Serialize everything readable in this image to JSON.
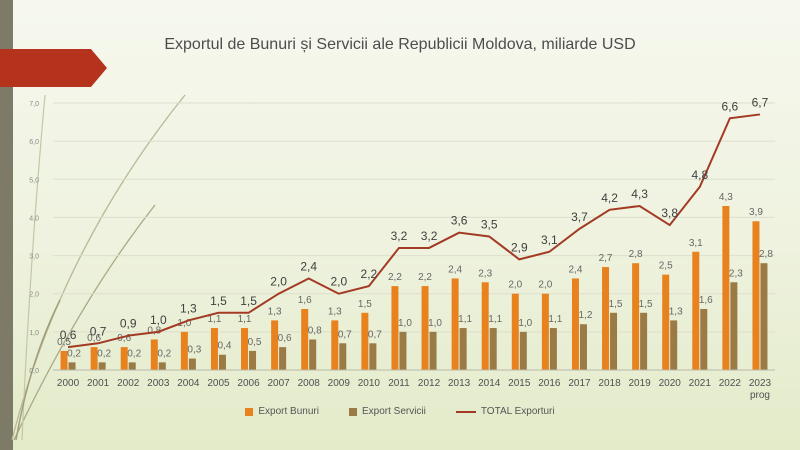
{
  "chart_data": {
    "type": "bar",
    "title": "Exportul de Bunuri și Servicii ale Republicii Moldova, miliarde USD",
    "categories": [
      "2000",
      "2001",
      "2002",
      "2003",
      "2004",
      "2005",
      "2006",
      "2007",
      "2008",
      "2009",
      "2010",
      "2011",
      "2012",
      "2013",
      "2014",
      "2015",
      "2016",
      "2017",
      "2018",
      "2019",
      "2020",
      "2021",
      "2022",
      "2023 prog"
    ],
    "yticks": [
      "0,0",
      "1,0",
      "2,0",
      "3,0",
      "4,0",
      "5,0",
      "6,0",
      "7,0"
    ],
    "ylim": [
      0,
      7
    ],
    "series": [
      {
        "name": "Export Bunuri",
        "type": "bar",
        "color": "#e8821e",
        "values": [
          0.5,
          0.6,
          0.6,
          0.8,
          1.0,
          1.1,
          1.1,
          1.3,
          1.6,
          1.3,
          1.5,
          2.2,
          2.2,
          2.4,
          2.3,
          2.0,
          2.0,
          2.4,
          2.7,
          2.8,
          2.5,
          3.1,
          4.3,
          3.9
        ],
        "labels": [
          "0,5",
          "0,6",
          "0,6",
          "0,8",
          "1,0",
          "1,1",
          "1,1",
          "1,3",
          "1,6",
          "1,3",
          "1,5",
          "2,2",
          "2,2",
          "2,4",
          "2,3",
          "2,0",
          "2,0",
          "2,4",
          "2,7",
          "2,8",
          "2,5",
          "3,1",
          "4,3",
          "3,9"
        ]
      },
      {
        "name": "Export Servicii",
        "type": "bar",
        "color": "#9a7b45",
        "values": [
          0.2,
          0.2,
          0.2,
          0.2,
          0.3,
          0.4,
          0.5,
          0.6,
          0.8,
          0.7,
          0.7,
          1.0,
          1.0,
          1.1,
          1.1,
          1.0,
          1.1,
          1.2,
          1.5,
          1.5,
          1.3,
          1.6,
          2.3,
          2.8
        ],
        "labels": [
          "0,2",
          "0,2",
          "0,2",
          "0,2",
          "0,3",
          "0,4",
          "0,5",
          "0,6",
          "0,8",
          "0,7",
          "0,7",
          "1,0",
          "1,0",
          "1,1",
          "1,1",
          "1,0",
          "1,1",
          "1,2",
          "1,5",
          "1,5",
          "1,3",
          "1,6",
          "2,3",
          "2,8"
        ]
      },
      {
        "name": "TOTAL Exporturi",
        "type": "line",
        "color": "#a33a24",
        "values": [
          0.6,
          0.7,
          0.9,
          1.0,
          1.3,
          1.5,
          1.5,
          2.0,
          2.4,
          2.0,
          2.2,
          3.2,
          3.2,
          3.6,
          3.5,
          2.9,
          3.1,
          3.7,
          4.2,
          4.3,
          3.8,
          4.8,
          6.6,
          6.7
        ],
        "labels": [
          "0,6",
          "0,7",
          "0,9",
          "1,0",
          "1,3",
          "1,5",
          "1,5",
          "2,0",
          "2,4",
          "2,0",
          "2,2",
          "3,2",
          "3,2",
          "3,6",
          "3,5",
          "2,9",
          "3,1",
          "3,7",
          "4,2",
          "4,3",
          "3,8",
          "4,8",
          "6,6",
          "6,7"
        ]
      }
    ],
    "legend": "bottom"
  }
}
